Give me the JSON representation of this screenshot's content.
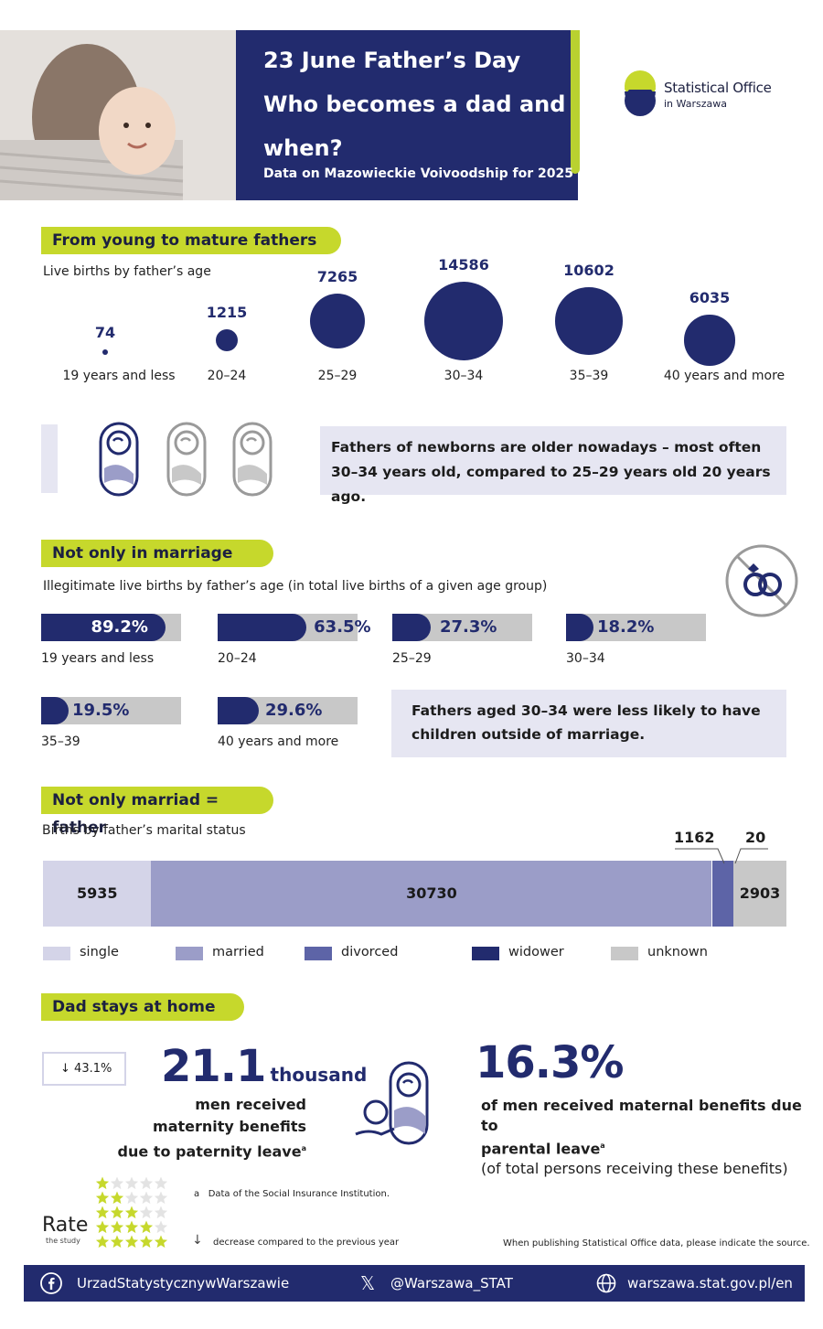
{
  "header": {
    "title_line1": "23 June Father’s Day",
    "title_line2": "Who becomes a dad and",
    "title_line3": "when?",
    "subtitle": "Data on Mazowieckie Voivoodship for 2025",
    "logo_line1": "Statistical Office",
    "logo_line2": "in Warszawa"
  },
  "section1": {
    "heading": "From young to mature fathers",
    "subtitle": "Live births by father’s age",
    "groups": [
      {
        "label": "19 years and less",
        "value": 74
      },
      {
        "label": "20–24",
        "value": 1215
      },
      {
        "label": "25–29",
        "value": 7265
      },
      {
        "label": "30–34",
        "value": 14586
      },
      {
        "label": "35–39",
        "value": 10602
      },
      {
        "label": "40 years and more",
        "value": 6035
      }
    ],
    "note": "Fathers of newborns are older nowadays – most often 30–34 years old, compared to 25–29 years old 20 years ago."
  },
  "section2": {
    "heading": "Not only in marriage",
    "subtitle": "Illegitimate live births by father’s age (in total live births of a given age group)",
    "bars": [
      {
        "label": "19 years and less",
        "value": "89.2%",
        "pct": 89.2
      },
      {
        "label": "20–24",
        "value": "63.5%",
        "pct": 63.5
      },
      {
        "label": "25–29",
        "value": "27.3%",
        "pct": 27.3
      },
      {
        "label": "30–34",
        "value": "18.2%",
        "pct": 18.2
      },
      {
        "label": "35–39",
        "value": "19.5%",
        "pct": 19.5
      },
      {
        "label": "40 years and more",
        "value": "29.6%",
        "pct": 29.6
      }
    ],
    "note": "Fathers aged 30–34 were less likely to have children outside of marriage."
  },
  "section3": {
    "heading": "Not only marriad = father",
    "subtitle": "Births by father’s marital status",
    "segments": [
      {
        "name": "single",
        "value": 5935,
        "color": "#d4d4e8"
      },
      {
        "name": "married",
        "value": 30730,
        "color": "#9b9dc8"
      },
      {
        "name": "divorced",
        "value": 1162,
        "color": "#5d64a7"
      },
      {
        "name": "widower",
        "value": 20,
        "color": "#222b6e"
      },
      {
        "name": "unknown",
        "value": 2903,
        "color": "#c8c8c8"
      }
    ],
    "labels": {
      "single": "5935",
      "married": "30730",
      "divorced": "1162",
      "widower": "20",
      "unknown": "2903"
    }
  },
  "section4": {
    "heading": "Dad stays at home",
    "change_badge": "43.1%",
    "big_number": "21.1",
    "big_unit": "thousand",
    "desc_line1": "men received",
    "desc_line2": "maternity benefits",
    "desc_line3": "due to paternity leave",
    "footnote_mark": "a",
    "pct_big": "16.3%",
    "pct_line1": "of men received maternal benefits due to",
    "pct_line2": "parental leave",
    "pct_line3": "(of total persons receiving these benefits)"
  },
  "footer_notes": {
    "note_a_mark": "a",
    "note_a": "Data of the Social Insurance Institution.",
    "note_arrow": "decrease compared to the previous year",
    "source_note": "When publishing Statistical Office data, please indicate the source.",
    "rate_label": "Rate",
    "rate_sub": "the study"
  },
  "footer_bar": {
    "facebook": "UrzadStatystycznywWarszawie",
    "x": "@Warszawa_STAT",
    "web": "warszawa.stat.gov.pl/en"
  }
}
